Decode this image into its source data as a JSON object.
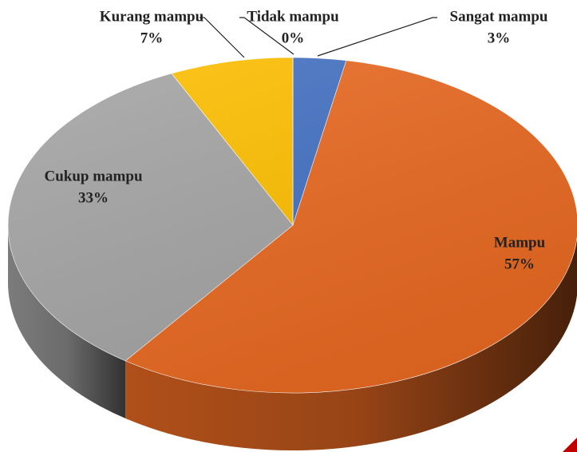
{
  "chart_data": {
    "type": "pie",
    "categories": [
      "Sangat mampu",
      "Mampu",
      "Cukup mampu",
      "Kurang mampu",
      "Tidak mampu"
    ],
    "values": [
      3,
      57,
      33,
      7,
      0
    ],
    "value_labels": [
      "3%",
      "57%",
      "33%",
      "7%",
      "0%"
    ],
    "colors": [
      "#4472c4",
      "#ea6a22",
      "#a5a5a5",
      "#ffc000",
      "#5b9bd5"
    ],
    "start_angle": 90,
    "direction": "clockwise",
    "legend": false
  }
}
